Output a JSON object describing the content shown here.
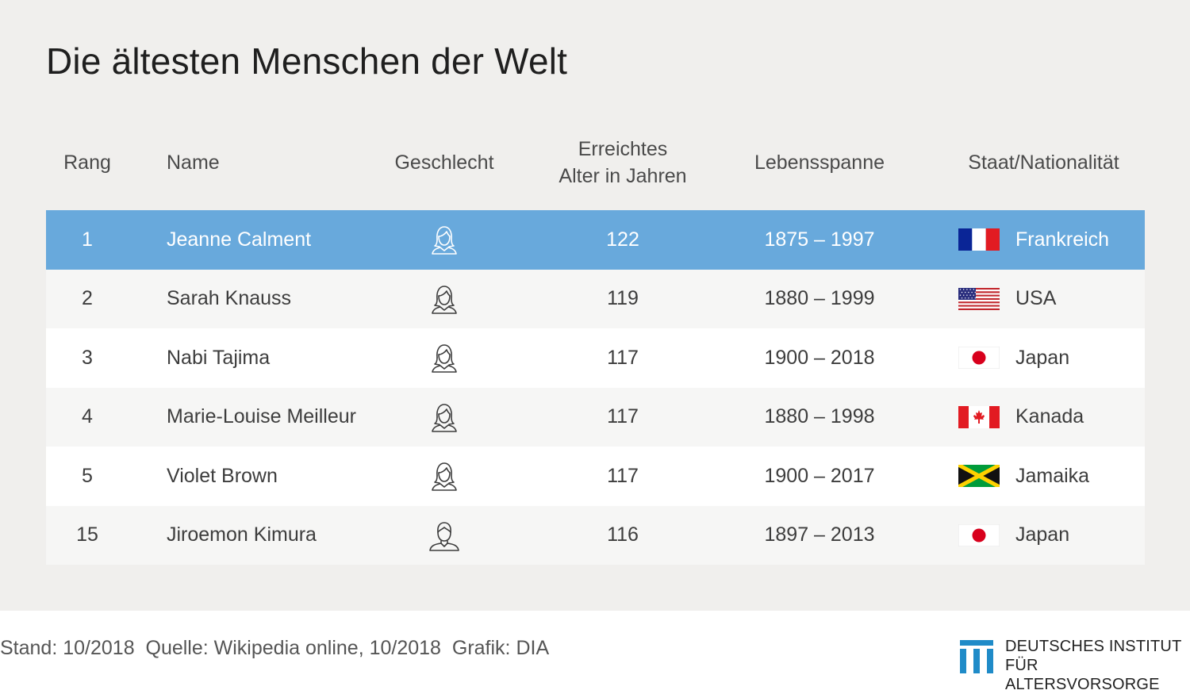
{
  "title": "Die ältesten Menschen der Welt",
  "chart_data": {
    "type": "table",
    "columns": [
      "Rang",
      "Name",
      "Geschlecht",
      "Erreichtes Alter in Jahren",
      "Lebensspanne",
      "Staat/Nationalität"
    ],
    "rows": [
      {
        "rank": "1",
        "name": "Jeanne Calment",
        "gender": "female",
        "age": 122,
        "lifespan": "1875 – 1997",
        "country": "Frankreich",
        "flag": "france-flag-icon",
        "highlighted": true
      },
      {
        "rank": "2",
        "name": "Sarah Knauss",
        "gender": "female",
        "age": 119,
        "lifespan": "1880 – 1999",
        "country": "USA",
        "flag": "usa-flag-icon",
        "highlighted": false
      },
      {
        "rank": "3",
        "name": "Nabi Tajima",
        "gender": "female",
        "age": 117,
        "lifespan": "1900 – 2018",
        "country": "Japan",
        "flag": "japan-flag-icon",
        "highlighted": false
      },
      {
        "rank": "4",
        "name": "Marie-Louise Meilleur",
        "gender": "female",
        "age": 117,
        "lifespan": "1880 – 1998",
        "country": "Kanada",
        "flag": "canada-flag-icon",
        "highlighted": false
      },
      {
        "rank": "5",
        "name": "Violet Brown",
        "gender": "female",
        "age": 117,
        "lifespan": "1900 – 2017",
        "country": "Jamaika",
        "flag": "jamaica-flag-icon",
        "highlighted": false
      },
      {
        "rank": "15",
        "name": "Jiroemon Kimura",
        "gender": "male",
        "age": 116,
        "lifespan": "1897 – 2013",
        "country": "Japan",
        "flag": "japan-flag-icon",
        "highlighted": false
      }
    ]
  },
  "header": {
    "rank": "Rang",
    "name": "Name",
    "gender": "Geschlecht",
    "age_line1": "Erreichtes",
    "age_line2": "Alter in Jahren",
    "lifespan": "Lebensspanne",
    "country": "Staat/Nationalität"
  },
  "footer": {
    "stand": "Stand: 10/2018",
    "source": "Quelle: Wikipedia online, 10/2018",
    "graphic": "Grafik: DIA"
  },
  "logo": {
    "line1": "DEUTSCHES INSTITUT",
    "line2": "FÜR ALTERSVORSORGE"
  },
  "colors": {
    "highlight": "#68a9dc",
    "background": "#f0efed",
    "logo_blue": "#1f8bc8"
  }
}
